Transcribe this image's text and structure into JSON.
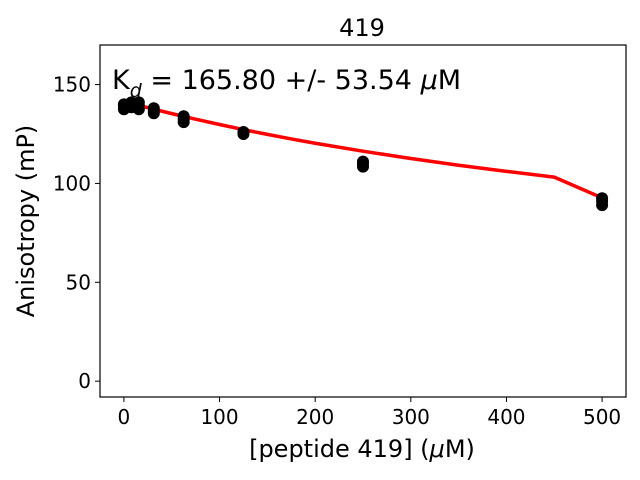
{
  "chart_data": {
    "type": "scatter",
    "title": "419",
    "xlabel_pre": "[peptide 419] (",
    "xlabel_mu": "μ",
    "xlabel_post": "M)",
    "ylabel": "Anisotropy (mP)",
    "annotation_k": "K",
    "annotation_sub": "d",
    "annotation_mid": " = 165.80 +/- 53.54 ",
    "annotation_mu": "μ",
    "annotation_unit": "M",
    "xlim": [
      -25,
      525
    ],
    "ylim": [
      -8,
      170
    ],
    "xticks": [
      0,
      100,
      200,
      300,
      400,
      500
    ],
    "yticks": [
      0,
      50,
      100,
      150
    ],
    "point_color": "#000000",
    "fit_color": "#ff0000",
    "points": [
      {
        "x": 0,
        "y": 137.5
      },
      {
        "x": 0,
        "y": 139
      },
      {
        "x": 0,
        "y": 140
      },
      {
        "x": 7.8,
        "y": 138.5
      },
      {
        "x": 7.8,
        "y": 140
      },
      {
        "x": 7.8,
        "y": 141
      },
      {
        "x": 15.6,
        "y": 137.5
      },
      {
        "x": 15.6,
        "y": 139.5
      },
      {
        "x": 15.6,
        "y": 141
      },
      {
        "x": 31.25,
        "y": 135.5
      },
      {
        "x": 31.25,
        "y": 136.5
      },
      {
        "x": 31.25,
        "y": 138
      },
      {
        "x": 62.5,
        "y": 131
      },
      {
        "x": 62.5,
        "y": 132.5
      },
      {
        "x": 62.5,
        "y": 134
      },
      {
        "x": 125,
        "y": 125
      },
      {
        "x": 125,
        "y": 126
      },
      {
        "x": 250,
        "y": 108.5
      },
      {
        "x": 250,
        "y": 110
      },
      {
        "x": 250,
        "y": 111
      },
      {
        "x": 500,
        "y": 89
      },
      {
        "x": 500,
        "y": 91
      },
      {
        "x": 500,
        "y": 92.5
      }
    ],
    "fit": {
      "x": [
        0,
        25,
        50,
        75,
        100,
        125,
        150,
        175,
        200,
        250,
        300,
        350,
        400,
        450,
        500
      ],
      "y": [
        141.5,
        138.3,
        135.3,
        132.5,
        129.8,
        127.2,
        124.8,
        122.5,
        120.3,
        116.3,
        112.6,
        109.2,
        106.1,
        103.2,
        92.7
      ]
    }
  }
}
